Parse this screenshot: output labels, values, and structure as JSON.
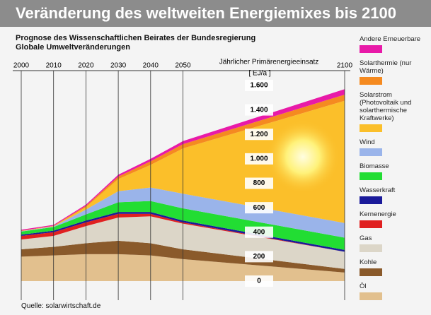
{
  "chart_data": {
    "type": "stacked-area",
    "title": "Veränderung des weltweiten Energiemixes bis 2100",
    "subtitle": [
      "Prognose des Wissenschaftlichen Beirates der Bundesregierung",
      "Globale Umweltveränderungen"
    ],
    "y_label": "Jährlicher Primärenergieeinsatz",
    "y_unit": "[ EJ/a ]",
    "source": "Quelle: solarwirtschaft.de",
    "x": [
      2000,
      2010,
      2020,
      2030,
      2040,
      2050,
      2100
    ],
    "xlim": [
      2000,
      2100
    ],
    "xticks": [
      2000,
      2010,
      2020,
      2030,
      2040,
      2050,
      2100
    ],
    "ylim": [
      0,
      1600
    ],
    "yticks": [
      0,
      200,
      400,
      600,
      800,
      {
        "value": 1000,
        "label": "1.000"
      },
      {
        "value": 1200,
        "label": "1.200"
      },
      {
        "value": 1400,
        "label": "1.400"
      },
      {
        "value": 1600,
        "label": "1.600"
      }
    ],
    "series": [
      {
        "name": "Öl",
        "color": "#e2c08e",
        "values": [
          200,
          210,
          220,
          220,
          210,
          180,
          70
        ]
      },
      {
        "name": "Kohle",
        "color": "#8a5a2b",
        "values": [
          60,
          70,
          90,
          110,
          100,
          80,
          30
        ]
      },
      {
        "name": "Gas",
        "color": "#dcd6c8",
        "values": [
          80,
          90,
          140,
          190,
          220,
          210,
          140
        ]
      },
      {
        "name": "Kernenergie",
        "color": "#e02020",
        "values": [
          30,
          30,
          30,
          30,
          20,
          10,
          0
        ]
      },
      {
        "name": "Wasserkraft",
        "color": "#1a1a9a",
        "values": [
          10,
          12,
          15,
          15,
          15,
          15,
          15
        ]
      },
      {
        "name": "Biomasse",
        "color": "#22dd33",
        "values": [
          25,
          30,
          50,
          80,
          90,
          100,
          100
        ]
      },
      {
        "name": "Wind",
        "color": "#9ab4ea",
        "values": [
          3,
          5,
          40,
          90,
          110,
          120,
          120
        ]
      },
      {
        "name": "Solarstrom (Photovoltaik und solarthermische Kraftwerke)",
        "color": "#fbbf2a",
        "values": [
          2,
          3,
          20,
          100,
          185,
          370,
          1000
        ]
      },
      {
        "name": "Solarthermie (nur Wärme)",
        "color": "#f58a20",
        "values": [
          2,
          3,
          10,
          20,
          30,
          35,
          50
        ]
      },
      {
        "name": "Andere Erneuerbare",
        "color": "#e81aa8",
        "values": [
          8,
          7,
          10,
          15,
          20,
          25,
          45
        ]
      }
    ]
  }
}
